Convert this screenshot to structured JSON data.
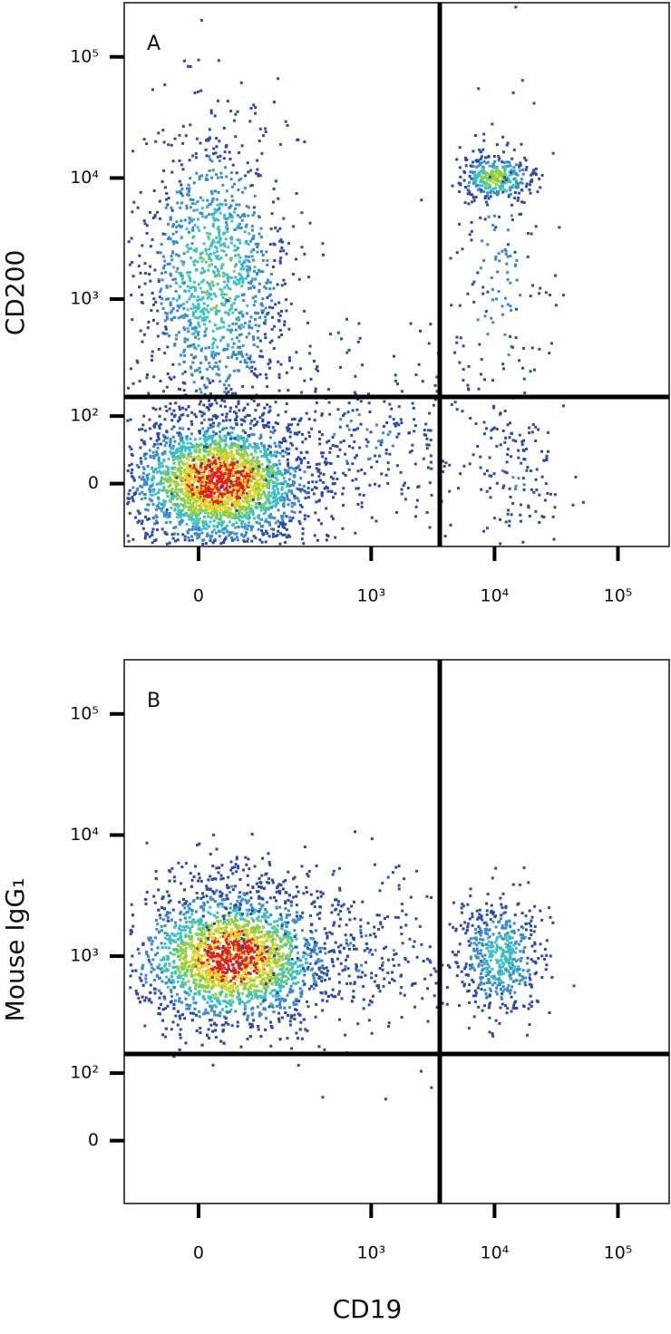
{
  "figure": {
    "x_label": "CD19"
  },
  "chart_data": [
    {
      "type": "scatter",
      "panel_label": "A",
      "y_label": "CD200",
      "xlim": [
        -150,
        260000
      ],
      "ylim": [
        -90,
        280000
      ],
      "xticks": [
        0,
        {
          "value": 1000,
          "label": "10³"
        },
        {
          "value": 10000,
          "label": "10⁴"
        },
        {
          "value": 100000,
          "label": "10⁵"
        }
      ],
      "yticks": [
        0,
        {
          "value": 100,
          "label": "10²"
        },
        {
          "value": 1000,
          "label": "10³"
        },
        {
          "value": 10000,
          "label": "10⁴"
        },
        {
          "value": 100000,
          "label": "10⁵"
        }
      ],
      "quadrant_gate": {
        "x": 3600,
        "y": 150
      }
    },
    {
      "type": "scatter",
      "panel_label": "B",
      "y_label": "Mouse IgG₁",
      "xlim": [
        -150,
        260000
      ],
      "ylim": [
        -90,
        280000
      ],
      "xticks": [
        0,
        {
          "value": 1000,
          "label": "10³"
        },
        {
          "value": 10000,
          "label": "10⁴"
        },
        {
          "value": 100000,
          "label": "10⁵"
        }
      ],
      "yticks": [
        0,
        {
          "value": 100,
          "label": "10²"
        },
        {
          "value": 1000,
          "label": "10³"
        },
        {
          "value": 10000,
          "label": "10⁴"
        },
        {
          "value": 100000,
          "label": "10⁵"
        }
      ],
      "quadrant_gate": {
        "x": 3600,
        "y": 150
      }
    }
  ]
}
